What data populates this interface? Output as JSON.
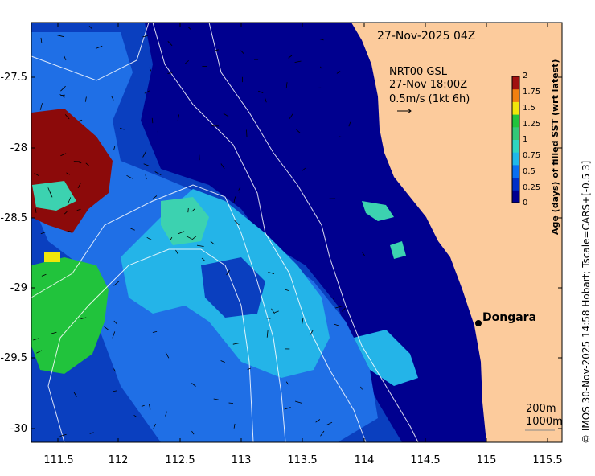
{
  "map": {
    "timestamp": "27-Nov-2025 04Z",
    "current_source": "NRT00 GSL",
    "current_time": "27-Nov 18:00Z",
    "vector_scale": "0.5m/s (1kt 6h)",
    "place": "Dongara",
    "isobath_1": "200m",
    "isobath_2": "1000m",
    "lon_ticks": [
      "111.5",
      "112",
      "112.5",
      "113",
      "113.5",
      "114",
      "114.5",
      "115",
      "115.5"
    ],
    "lat_ticks": [
      "-27.5",
      "-28",
      "-28.5",
      "-29",
      "-29.5",
      "-30"
    ],
    "colors": {
      "land": "#fccb9c",
      "ocean_deep": "#00008f",
      "ocean_mid": "#0a3fbf",
      "ocean_blue": "#1f6fe6",
      "ocean_light": "#24b4e8",
      "teal": "#3cd2b0",
      "green": "#21c33c",
      "yellow": "#f0e60a",
      "dark_red": "#8c0a0a"
    }
  },
  "colorbar": {
    "title": "Age (days) of filled SST (wrt latest)",
    "ticks": [
      "2",
      "1.75",
      "1.5",
      "1.25",
      "1",
      "0.75",
      "0.5",
      "0.25",
      "0"
    ],
    "colors": [
      "#00008f",
      "#0030c8",
      "#0a6ff0",
      "#20b8e8",
      "#2ed6c0",
      "#34c878",
      "#21c33c",
      "#f0e60a",
      "#f08010",
      "#a01010"
    ]
  },
  "credit": "© IMOS 30-Nov-2025 14:58 Hobart; Tscale=CARS+[-0.5 3]"
}
